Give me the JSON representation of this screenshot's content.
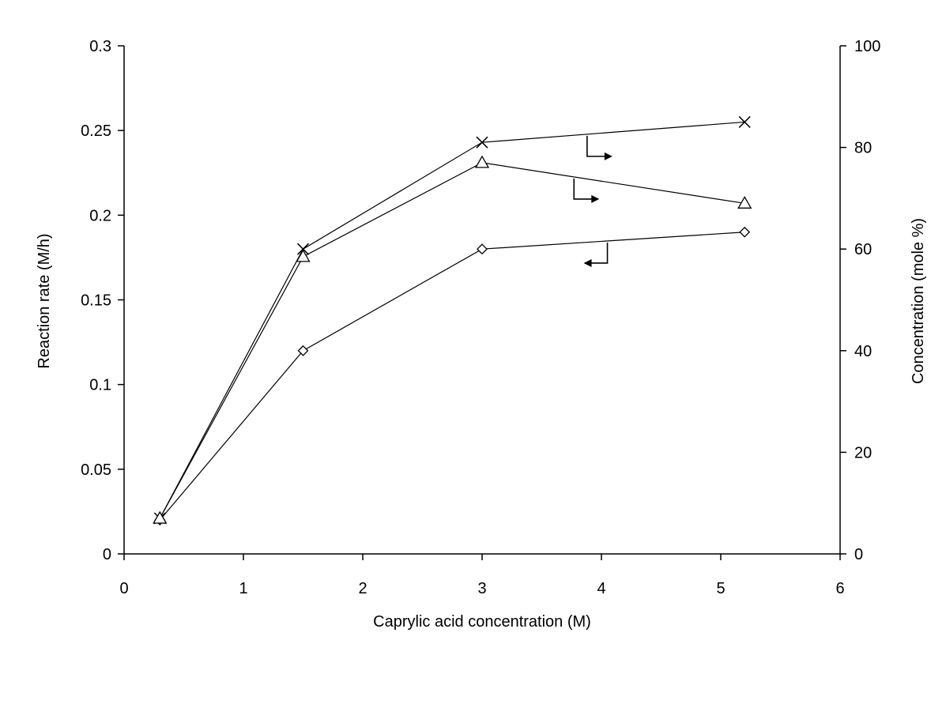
{
  "chart_data": {
    "type": "line",
    "title": "",
    "xlabel": "Caprylic acid concentration (M)",
    "ylabel": "Reaction rate (M/h)",
    "y2label": "Concentration (mole %)",
    "xlim": [
      0,
      6
    ],
    "ylim": [
      0,
      0.3
    ],
    "y2lim": [
      0,
      100
    ],
    "xticks": [
      "0",
      "1",
      "2",
      "3",
      "4",
      "5",
      "6"
    ],
    "yticks": [
      "0",
      "0.05",
      "0.1",
      "0.15",
      "0.2",
      "0.25",
      "0.3"
    ],
    "y2ticks": [
      "0",
      "20",
      "40",
      "60",
      "80",
      "100"
    ],
    "grid": false,
    "legend": "none",
    "series": [
      {
        "marker": "diamond",
        "axis": "left",
        "x": [
          0.3,
          1.5,
          3.0,
          5.2
        ],
        "values": [
          0.02,
          0.12,
          0.18,
          0.19
        ]
      },
      {
        "marker": "cross",
        "axis": "right",
        "x": [
          0.3,
          1.5,
          3.0,
          5.2
        ],
        "values": [
          7,
          60,
          81,
          85
        ]
      },
      {
        "marker": "triangle",
        "axis": "right",
        "x": [
          0.3,
          1.5,
          3.0,
          5.2
        ],
        "values": [
          7,
          58.5,
          77,
          69
        ]
      }
    ],
    "annotations": [
      {
        "type": "axis-pointer",
        "direction": "left",
        "series": "diamond"
      },
      {
        "type": "axis-pointer",
        "direction": "right",
        "series": "cross"
      },
      {
        "type": "axis-pointer",
        "direction": "right",
        "series": "triangle"
      }
    ]
  }
}
